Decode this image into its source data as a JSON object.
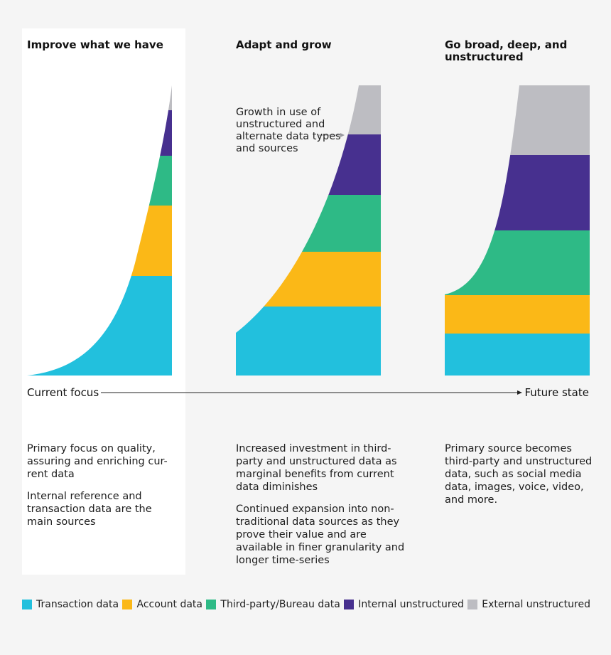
{
  "columns": [
    {
      "heading": "Improve what we have",
      "description": [
        "Primary focus on quality, assuring and enriching cur-rent data",
        "Internal reference and transaction data are the main sources"
      ]
    },
    {
      "heading": "Adapt and grow",
      "description": [
        "Increased investment in third-party and unstructured data as marginal benefits from current data diminishes",
        "Continued expansion into non-traditional data sources as they prove their value and are available in finer granularity and longer time-series"
      ]
    },
    {
      "heading": "Go broad, deep, and unstructured",
      "description": [
        "Primary source becomes third-party and unstructured data, such as social media data, images, voice, video, and more."
      ]
    }
  ],
  "annotation": "Growth in use of unstructured and alternate data types and sources",
  "axis": {
    "left": "Current focus",
    "right": "Future state"
  },
  "legend": [
    {
      "label": "Transaction data",
      "color": "#22c0dd"
    },
    {
      "label": "Account data",
      "color": "#fbb817"
    },
    {
      "label": "Third-party/Bureau data",
      "color": "#2eba86"
    },
    {
      "label": "Internal unstructured",
      "color": "#47308f"
    },
    {
      "label": "External unstructured",
      "color": "#bdbdc2"
    }
  ],
  "colors": {
    "transaction": "#22c0dd",
    "account": "#fbb817",
    "third_party": "#2eba86",
    "internal": "#47308f",
    "external": "#bdbdc2"
  }
}
